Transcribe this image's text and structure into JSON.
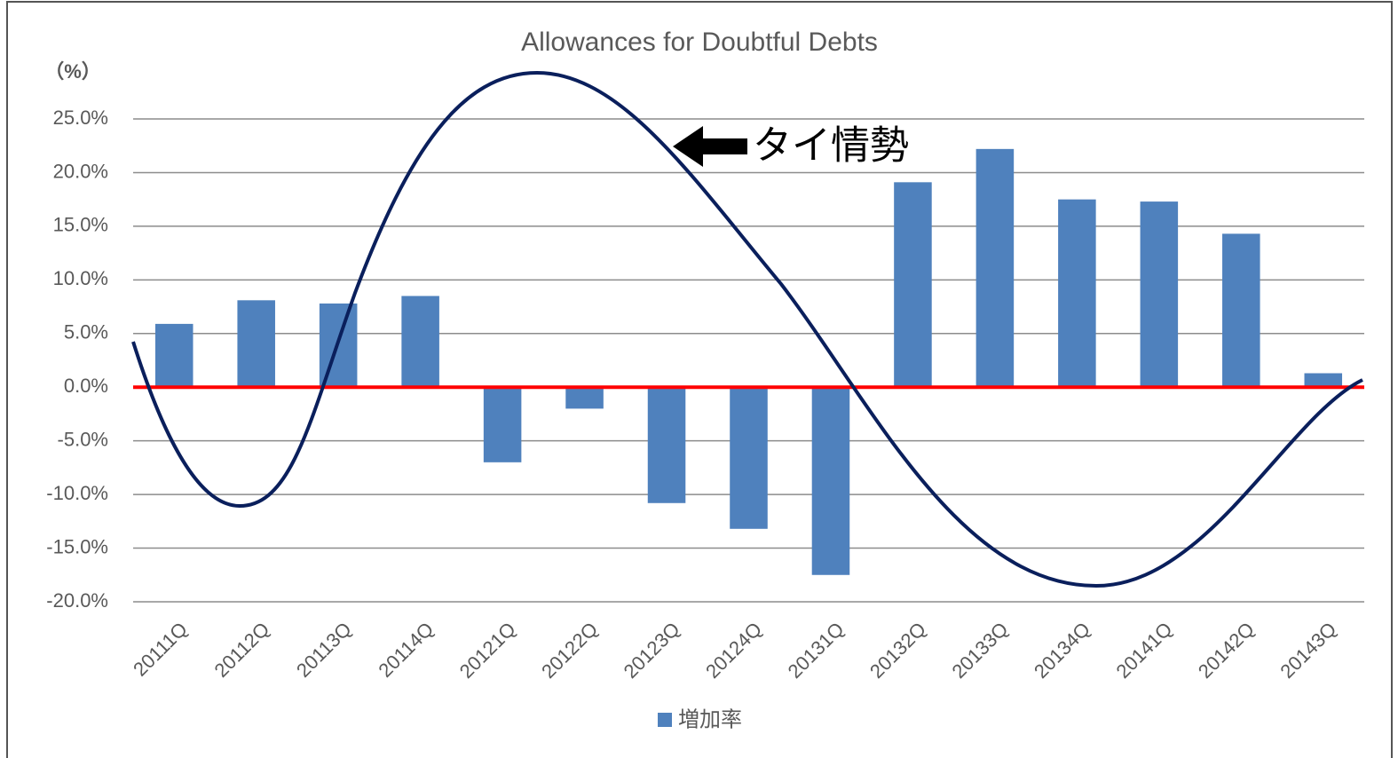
{
  "chart_data": {
    "type": "bar",
    "title": "Allowances for Doubtful Debts",
    "y_unit": "（%）",
    "categories": [
      "20111Q",
      "20112Q",
      "20113Q",
      "20114Q",
      "20121Q",
      "20122Q",
      "20123Q",
      "20124Q",
      "20131Q",
      "20132Q",
      "20133Q",
      "20134Q",
      "20141Q",
      "20142Q",
      "20143Q"
    ],
    "series": [
      {
        "name": "増加率",
        "color": "#4f81bd",
        "values": [
          5.9,
          8.1,
          7.8,
          8.5,
          -7.0,
          -2.0,
          -10.8,
          -13.2,
          -17.5,
          19.1,
          22.2,
          17.5,
          17.3,
          14.3,
          1.3
        ]
      }
    ],
    "ylim": [
      -20,
      25
    ],
    "yticks": [
      {
        "value": -20,
        "label": "-20.0%"
      },
      {
        "value": -15,
        "label": "-15.0%"
      },
      {
        "value": -10,
        "label": "-10.0%"
      },
      {
        "value": -5,
        "label": "-5.0%"
      },
      {
        "value": 0,
        "label": "0.0%"
      },
      {
        "value": 5,
        "label": "5.0%"
      },
      {
        "value": 10,
        "label": "10.0%"
      },
      {
        "value": 15,
        "label": "15.0%"
      },
      {
        "value": 20,
        "label": "20.0%"
      },
      {
        "value": 25,
        "label": "25.0%"
      }
    ],
    "grid": true,
    "zero_line_color": "#ff0000",
    "annotation": "タイ情勢",
    "legend": "bottom"
  }
}
